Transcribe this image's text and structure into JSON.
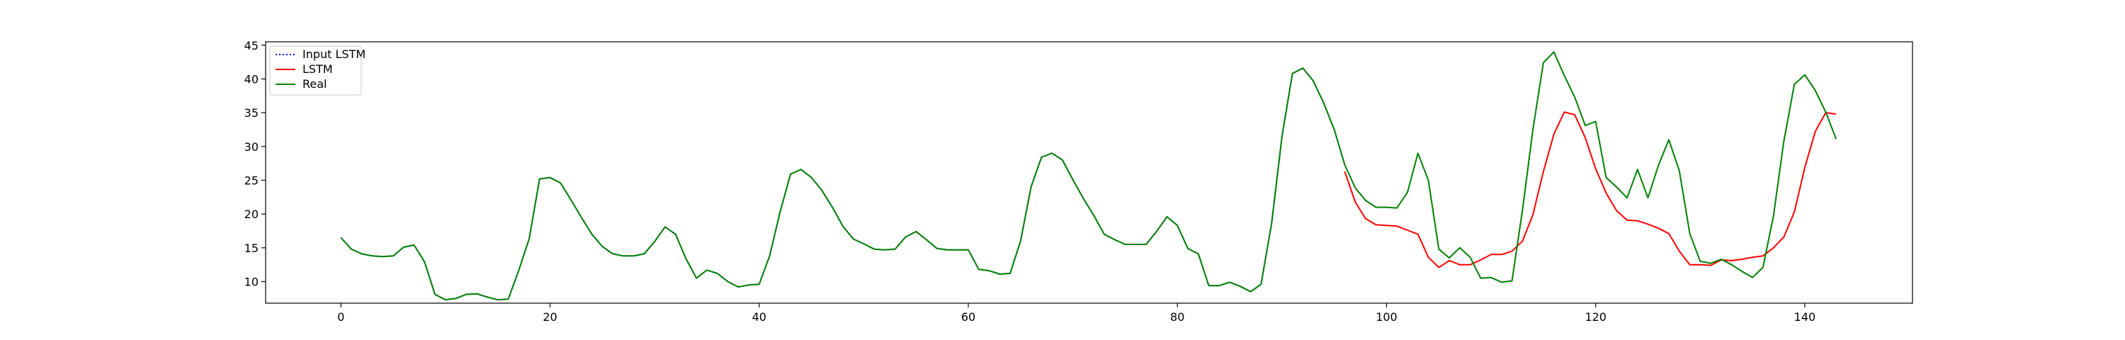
{
  "chart_data": {
    "type": "line",
    "title": "",
    "xlabel": "",
    "ylabel": "",
    "xlim": [
      -7.2,
      150.3
    ],
    "ylim": [
      6.8,
      45.5
    ],
    "xticks": [
      0,
      20,
      40,
      60,
      80,
      100,
      120,
      140
    ],
    "yticks": [
      10,
      15,
      20,
      25,
      30,
      35,
      40,
      45
    ],
    "grid": false,
    "legend_position": "top-left",
    "legend": [
      "Input LSTM",
      "LSTM",
      "Real"
    ],
    "series": [
      {
        "name": "Input LSTM",
        "color": "#0000ff",
        "style": "dotted",
        "x": [
          0,
          1,
          2,
          3,
          4,
          5,
          6,
          7,
          8,
          9,
          10,
          11,
          12,
          13,
          14,
          15,
          16,
          17,
          18,
          19,
          20,
          21,
          22,
          23,
          24,
          25,
          26,
          27,
          28,
          29,
          30,
          31,
          32,
          33,
          34,
          35,
          36,
          37,
          38,
          39,
          40,
          41,
          42,
          43,
          44,
          45,
          46,
          47,
          48,
          49,
          50,
          51,
          52,
          53,
          54,
          55,
          56,
          57,
          58,
          59,
          60,
          61,
          62,
          63,
          64,
          65,
          66,
          67,
          68,
          69,
          70,
          71,
          72,
          73,
          74,
          75,
          76,
          77,
          78,
          79,
          80,
          81,
          82,
          83,
          84,
          85,
          86,
          87,
          88,
          89,
          90,
          91,
          92,
          93,
          94,
          95,
          96
        ],
        "values": [
          16.5,
          14.8,
          14.1,
          13.8,
          13.7,
          13.8,
          15.1,
          15.4,
          12.9,
          8.1,
          7.3,
          7.5,
          8.1,
          8.2,
          7.7,
          7.3,
          7.4,
          11.6,
          16.3,
          25.2,
          25.4,
          24.6,
          22.1,
          19.5,
          17.0,
          15.2,
          14.1,
          13.8,
          13.8,
          14.1,
          15.9,
          18.1,
          17.0,
          13.4,
          10.5,
          11.7,
          11.2,
          10.0,
          9.2,
          9.5,
          9.6,
          13.8,
          20.3,
          25.9,
          26.6,
          25.4,
          23.5,
          21.0,
          18.2,
          16.3,
          15.6,
          14.8,
          14.7,
          14.8,
          16.6,
          17.4,
          16.2,
          14.9,
          14.7,
          14.7,
          14.7,
          11.8,
          11.6,
          11.1,
          11.2,
          16.0,
          24.0,
          28.4,
          29.0,
          28.0,
          25.1,
          22.3,
          19.8,
          17.0,
          16.2,
          15.5,
          15.5,
          15.5,
          17.4,
          19.6,
          18.3,
          14.9,
          14.1,
          9.4,
          9.4,
          9.9,
          9.3,
          8.5,
          9.6,
          18.5,
          31.5,
          40.8,
          41.6,
          39.7,
          36.4,
          32.5,
          27.3
        ]
      },
      {
        "name": "LSTM",
        "color": "#ff0000",
        "style": "solid",
        "x": [
          96,
          97,
          98,
          99,
          100,
          101,
          102,
          103,
          104,
          105,
          106,
          107,
          108,
          109,
          110,
          111,
          112,
          113,
          114,
          115,
          116,
          117,
          118,
          119,
          120,
          121,
          122,
          123,
          124,
          125,
          126,
          127,
          128,
          129,
          130,
          131,
          132,
          133,
          134,
          135,
          136,
          137,
          138,
          139,
          140,
          141,
          142,
          143
        ],
        "values": [
          26.3,
          21.8,
          19.3,
          18.4,
          18.3,
          18.2,
          17.6,
          17.0,
          13.6,
          12.1,
          13.1,
          12.5,
          12.5,
          13.2,
          14.0,
          14.0,
          14.5,
          16.0,
          19.9,
          26.3,
          31.8,
          35.1,
          34.7,
          31.3,
          26.7,
          23.1,
          20.5,
          19.1,
          19.0,
          18.5,
          17.9,
          17.1,
          14.5,
          12.5,
          12.5,
          12.4,
          13.2,
          13.1,
          13.3,
          13.6,
          13.8,
          15.0,
          16.6,
          20.3,
          26.9,
          32.2,
          35.0,
          34.8
        ]
      },
      {
        "name": "Real",
        "color": "#008000",
        "style": "solid",
        "x": [
          0,
          1,
          2,
          3,
          4,
          5,
          6,
          7,
          8,
          9,
          10,
          11,
          12,
          13,
          14,
          15,
          16,
          17,
          18,
          19,
          20,
          21,
          22,
          23,
          24,
          25,
          26,
          27,
          28,
          29,
          30,
          31,
          32,
          33,
          34,
          35,
          36,
          37,
          38,
          39,
          40,
          41,
          42,
          43,
          44,
          45,
          46,
          47,
          48,
          49,
          50,
          51,
          52,
          53,
          54,
          55,
          56,
          57,
          58,
          59,
          60,
          61,
          62,
          63,
          64,
          65,
          66,
          67,
          68,
          69,
          70,
          71,
          72,
          73,
          74,
          75,
          76,
          77,
          78,
          79,
          80,
          81,
          82,
          83,
          84,
          85,
          86,
          87,
          88,
          89,
          90,
          91,
          92,
          93,
          94,
          95,
          96,
          97,
          98,
          99,
          100,
          101,
          102,
          103,
          104,
          105,
          106,
          107,
          108,
          109,
          110,
          111,
          112,
          113,
          114,
          115,
          116,
          117,
          118,
          119,
          120,
          121,
          122,
          123,
          124,
          125,
          126,
          127,
          128,
          129,
          130,
          131,
          132,
          133,
          134,
          135,
          136,
          137,
          138,
          139,
          140,
          141,
          142,
          143
        ],
        "values": [
          16.5,
          14.8,
          14.1,
          13.8,
          13.7,
          13.8,
          15.1,
          15.4,
          12.9,
          8.1,
          7.3,
          7.5,
          8.1,
          8.2,
          7.7,
          7.3,
          7.4,
          11.6,
          16.3,
          25.2,
          25.4,
          24.6,
          22.1,
          19.5,
          17.0,
          15.2,
          14.1,
          13.8,
          13.8,
          14.1,
          15.9,
          18.1,
          17.0,
          13.4,
          10.5,
          11.7,
          11.2,
          10.0,
          9.2,
          9.5,
          9.6,
          13.8,
          20.3,
          25.9,
          26.6,
          25.4,
          23.5,
          21.0,
          18.2,
          16.3,
          15.6,
          14.8,
          14.7,
          14.8,
          16.6,
          17.4,
          16.2,
          14.9,
          14.7,
          14.7,
          14.7,
          11.8,
          11.6,
          11.1,
          11.2,
          16.0,
          24.0,
          28.4,
          29.0,
          28.0,
          25.1,
          22.3,
          19.8,
          17.0,
          16.2,
          15.5,
          15.5,
          15.5,
          17.4,
          19.6,
          18.3,
          14.9,
          14.1,
          9.4,
          9.4,
          9.9,
          9.3,
          8.5,
          9.6,
          18.5,
          31.5,
          40.8,
          41.6,
          39.7,
          36.4,
          32.5,
          27.3,
          23.9,
          22.0,
          21.0,
          21.0,
          20.9,
          23.2,
          29.0,
          25.0,
          14.8,
          13.5,
          15.0,
          13.6,
          10.5,
          10.6,
          9.9,
          10.1,
          20.6,
          32.5,
          42.4,
          44.0,
          40.5,
          37.3,
          33.1,
          33.7,
          25.4,
          24.0,
          22.4,
          26.6,
          22.4,
          27.2,
          31.0,
          26.4,
          17.1,
          13.0,
          12.7,
          13.3,
          12.5,
          11.5,
          10.6,
          12.1,
          19.7,
          30.8,
          39.2,
          40.6,
          38.3,
          35.1,
          31.1
        ]
      }
    ]
  }
}
